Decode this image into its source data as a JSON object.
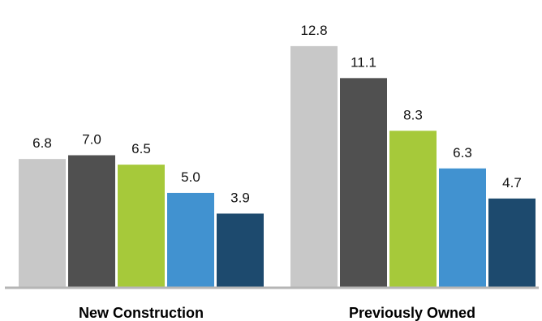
{
  "chart_data": {
    "type": "bar",
    "categories": [
      "New Construction",
      "Previously Owned"
    ],
    "series": [
      {
        "color": "#c8c8c8",
        "values": [
          6.8,
          12.8
        ]
      },
      {
        "color": "#505050",
        "values": [
          7.0,
          11.1
        ]
      },
      {
        "color": "#a6c93a",
        "values": [
          6.5,
          8.3
        ]
      },
      {
        "color": "#4192d0",
        "values": [
          5.0,
          6.3
        ]
      },
      {
        "color": "#1d4a6e",
        "values": [
          3.9,
          4.7
        ]
      }
    ],
    "ylim": [
      0,
      13.7
    ],
    "grid": false,
    "legend": "none",
    "axis_color": "#b5b5b5"
  }
}
